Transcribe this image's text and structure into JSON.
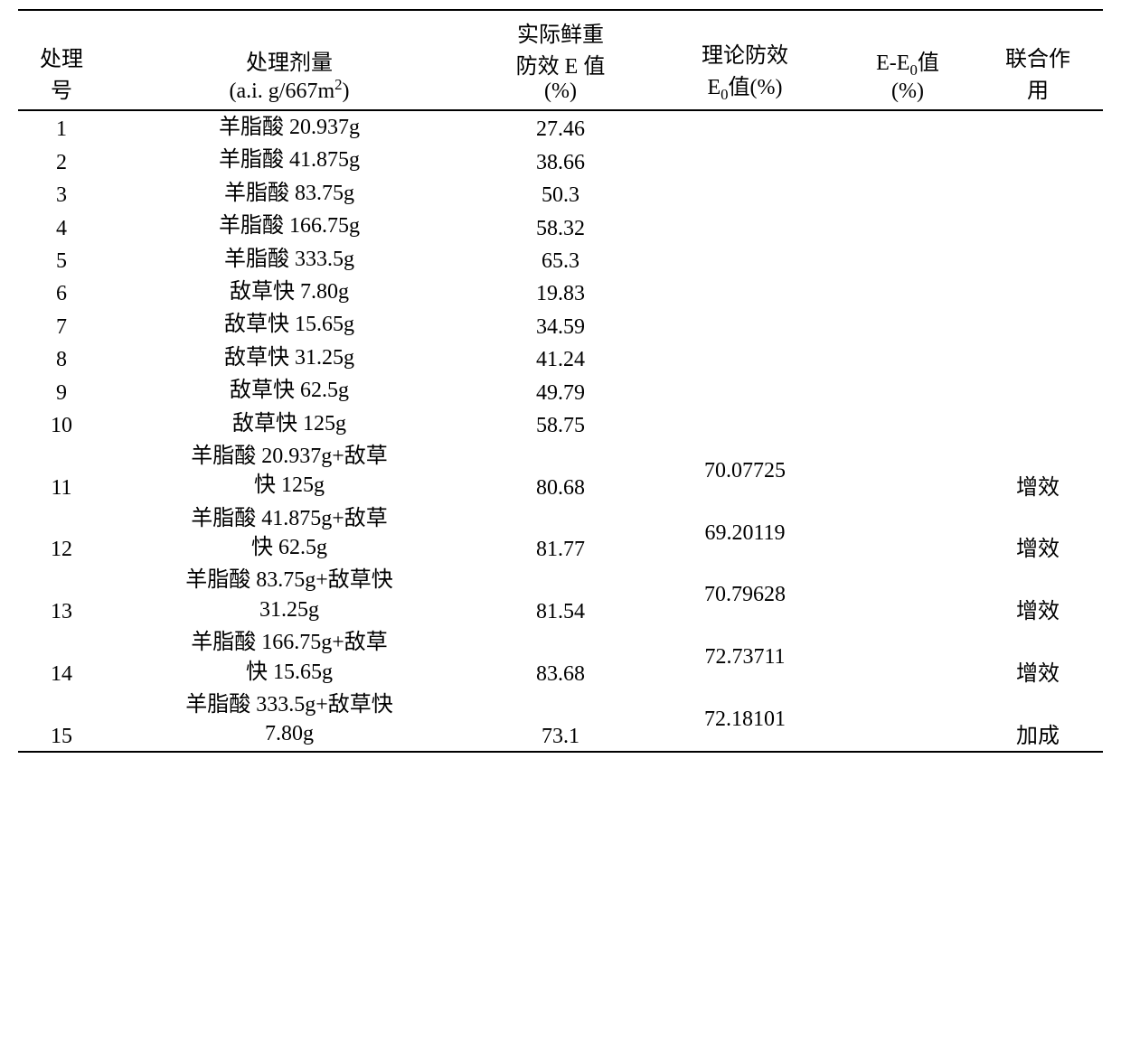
{
  "headers": {
    "id_l1": "处理",
    "id_l2": "号",
    "dose_l1": "处理剂量",
    "dose_l2_pre": "(a.i.  g/667m",
    "dose_l2_sup": "2",
    "dose_l2_post": ")",
    "e_l1": "实际鲜重",
    "e_l2": "防效 E 值",
    "e_l3": "(%)",
    "e0_l1": "理论防效",
    "e0_l2_pre": "E",
    "e0_l2_sub": "0",
    "e0_l2_post": "值(%)",
    "diff_l1_pre": "E-E",
    "diff_l1_sub": "0",
    "diff_l1_post": "值",
    "diff_l2": "(%)",
    "eff_l1": "联合作",
    "eff_l2": "用"
  },
  "rows": [
    {
      "id": "1",
      "dose1": "羊脂酸 20.937g",
      "dose2": "",
      "e": "27.46",
      "e0": "",
      "diff": "",
      "eff": ""
    },
    {
      "id": "2",
      "dose1": "羊脂酸 41.875g",
      "dose2": "",
      "e": "38.66",
      "e0": "",
      "diff": "",
      "eff": ""
    },
    {
      "id": "3",
      "dose1": "羊脂酸 83.75g",
      "dose2": "",
      "e": "50.3",
      "e0": "",
      "diff": "",
      "eff": ""
    },
    {
      "id": "4",
      "dose1": "羊脂酸 166.75g",
      "dose2": "",
      "e": "58.32",
      "e0": "",
      "diff": "",
      "eff": ""
    },
    {
      "id": "5",
      "dose1": "羊脂酸 333.5g",
      "dose2": "",
      "e": "65.3",
      "e0": "",
      "diff": "",
      "eff": ""
    },
    {
      "id": "6",
      "dose1": "敌草快 7.80g",
      "dose2": "",
      "e": "19.83",
      "e0": "",
      "diff": "",
      "eff": ""
    },
    {
      "id": "7",
      "dose1": "敌草快 15.65g",
      "dose2": "",
      "e": "34.59",
      "e0": "",
      "diff": "",
      "eff": ""
    },
    {
      "id": "8",
      "dose1": "敌草快 31.25g",
      "dose2": "",
      "e": "41.24",
      "e0": "",
      "diff": "",
      "eff": ""
    },
    {
      "id": "9",
      "dose1": "敌草快 62.5g",
      "dose2": "",
      "e": "49.79",
      "e0": "",
      "diff": "",
      "eff": ""
    },
    {
      "id": "10",
      "dose1": "敌草快 125g",
      "dose2": "",
      "e": "58.75",
      "e0": "",
      "diff": "",
      "eff": ""
    },
    {
      "id": "11",
      "dose1": "羊脂酸 20.937g+敌草",
      "dose2": "快 125g",
      "e": "80.68",
      "e0": "70.07725",
      "diff": "",
      "eff": "增效"
    },
    {
      "id": "12",
      "dose1": "羊脂酸 41.875g+敌草",
      "dose2": "快 62.5g",
      "e": "81.77",
      "e0": "69.20119",
      "diff": "",
      "eff": "增效"
    },
    {
      "id": "13",
      "dose1": "羊脂酸 83.75g+敌草快",
      "dose2": "31.25g",
      "e": "81.54",
      "e0": "70.79628",
      "diff": "",
      "eff": "增效"
    },
    {
      "id": "14",
      "dose1": "羊脂酸 166.75g+敌草",
      "dose2": "快 15.65g",
      "e": "83.68",
      "e0": "72.73711",
      "diff": "",
      "eff": "增效"
    },
    {
      "id": "15",
      "dose1": "羊脂酸 333.5g+敌草快",
      "dose2": "7.80g",
      "e": "73.1",
      "e0": "72.18101",
      "diff": "",
      "eff": "加成"
    }
  ],
  "style": {
    "font_family": "SimSun",
    "font_size_pt": 18,
    "text_color": "#000000",
    "background_color": "#ffffff",
    "border_color": "#000000",
    "column_widths_pct": [
      8,
      34,
      16,
      18,
      12,
      12
    ],
    "column_align": [
      "center",
      "center",
      "center",
      "center",
      "center",
      "center"
    ]
  }
}
